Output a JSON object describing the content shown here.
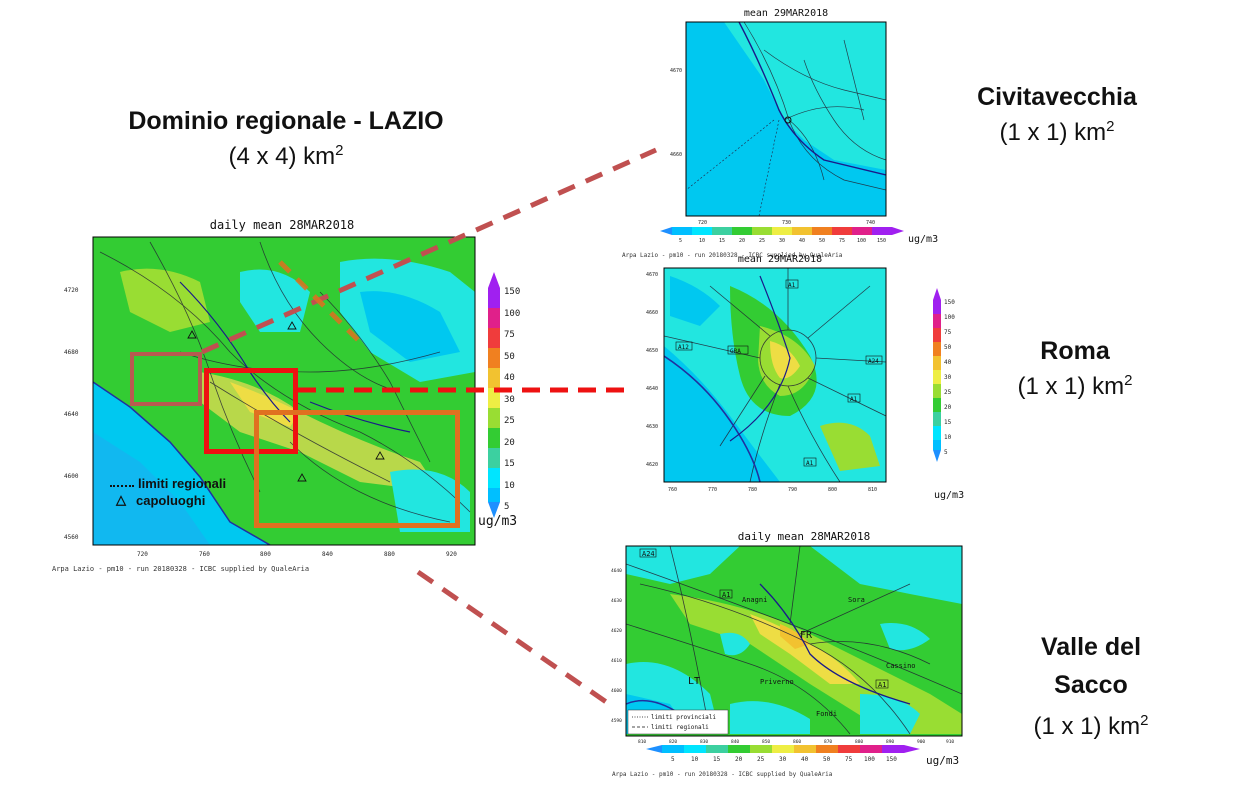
{
  "headings": {
    "regional": {
      "name": "Dominio regionale - LAZIO",
      "resolution": "(4 x 4) km",
      "sup": "2"
    },
    "civitavecchia": {
      "name": "Civitavecchia",
      "resolution": "(1 x 1) km",
      "sup": "2"
    },
    "roma": {
      "name": "Roma",
      "resolution": "(1 x 1) km",
      "sup": "2"
    },
    "valle": {
      "name_line1": "Valle del",
      "name_line2": "Sacco",
      "resolution": "(1 x 1) km",
      "sup": "2"
    }
  },
  "maps": {
    "regional": {
      "title": "daily mean 28MAR2018",
      "credit": "Arpa Lazio - pm10 - run 20180328 - ICBC supplied by QualeAria",
      "y_ticks": [
        "4720",
        "4680",
        "4640",
        "4600",
        "4560"
      ],
      "x_ticks": [
        "720",
        "760",
        "800",
        "840",
        "880",
        "920"
      ],
      "legend": {
        "boundaries": "limiti regionali",
        "capitals": "capoluoghi"
      }
    },
    "civitavecchia": {
      "title": "mean 29MAR2018",
      "credit": "Arpa Lazio - pm10 - run 20180328 - ICBC supplied by QualeAria",
      "y_ticks": [
        "4670",
        "4660"
      ],
      "x_ticks": [
        "720",
        "730",
        "740"
      ]
    },
    "roma": {
      "title": "mean 29MAR2018",
      "y_ticks": [
        "4670",
        "4660",
        "4650",
        "4640",
        "4630",
        "4620"
      ],
      "x_ticks": [
        "760",
        "770",
        "780",
        "790",
        "800",
        "810"
      ],
      "roads": [
        "A1",
        "A12",
        "GRA",
        "A24",
        "A1",
        "A1"
      ]
    },
    "valle": {
      "title": "daily mean 28MAR2018",
      "credit": "Arpa Lazio - pm10 - run 20180328 - ICBC supplied by QualeAria",
      "y_ticks": [
        "4640",
        "4630",
        "4620",
        "4610",
        "4600",
        "4590"
      ],
      "x_ticks": [
        "810",
        "820",
        "830",
        "840",
        "850",
        "860",
        "870",
        "880",
        "890",
        "900",
        "910"
      ],
      "places": [
        "Anagni",
        "Sora",
        "FR",
        "Cassino",
        "LT",
        "Priverno",
        "Fondi"
      ],
      "roads": [
        "A24",
        "A1",
        "A1"
      ],
      "legend": {
        "provincial": "limiti provinciali",
        "regional": "limiti regionali"
      }
    }
  },
  "colorbar": {
    "unit": "ug/m3",
    "levels": [
      "5",
      "10",
      "15",
      "20",
      "25",
      "30",
      "40",
      "50",
      "75",
      "100",
      "150"
    ],
    "colors": [
      "#1e90ff",
      "#00bfff",
      "#00e5ff",
      "#3cd0a0",
      "#33cc33",
      "#99dd33",
      "#eeee44",
      "#f2c230",
      "#f08020",
      "#f03c3c",
      "#e0208a",
      "#a020f0"
    ]
  },
  "colors": {
    "sea": "#00c8f0",
    "land_green": "#33cc33",
    "land_yellow": "#b8d84a",
    "land_cyan": "#30e0e0",
    "box_brown": "#b85a50",
    "box_red": "#ee1111",
    "box_orange": "#e07020",
    "connector": "#c05050"
  }
}
